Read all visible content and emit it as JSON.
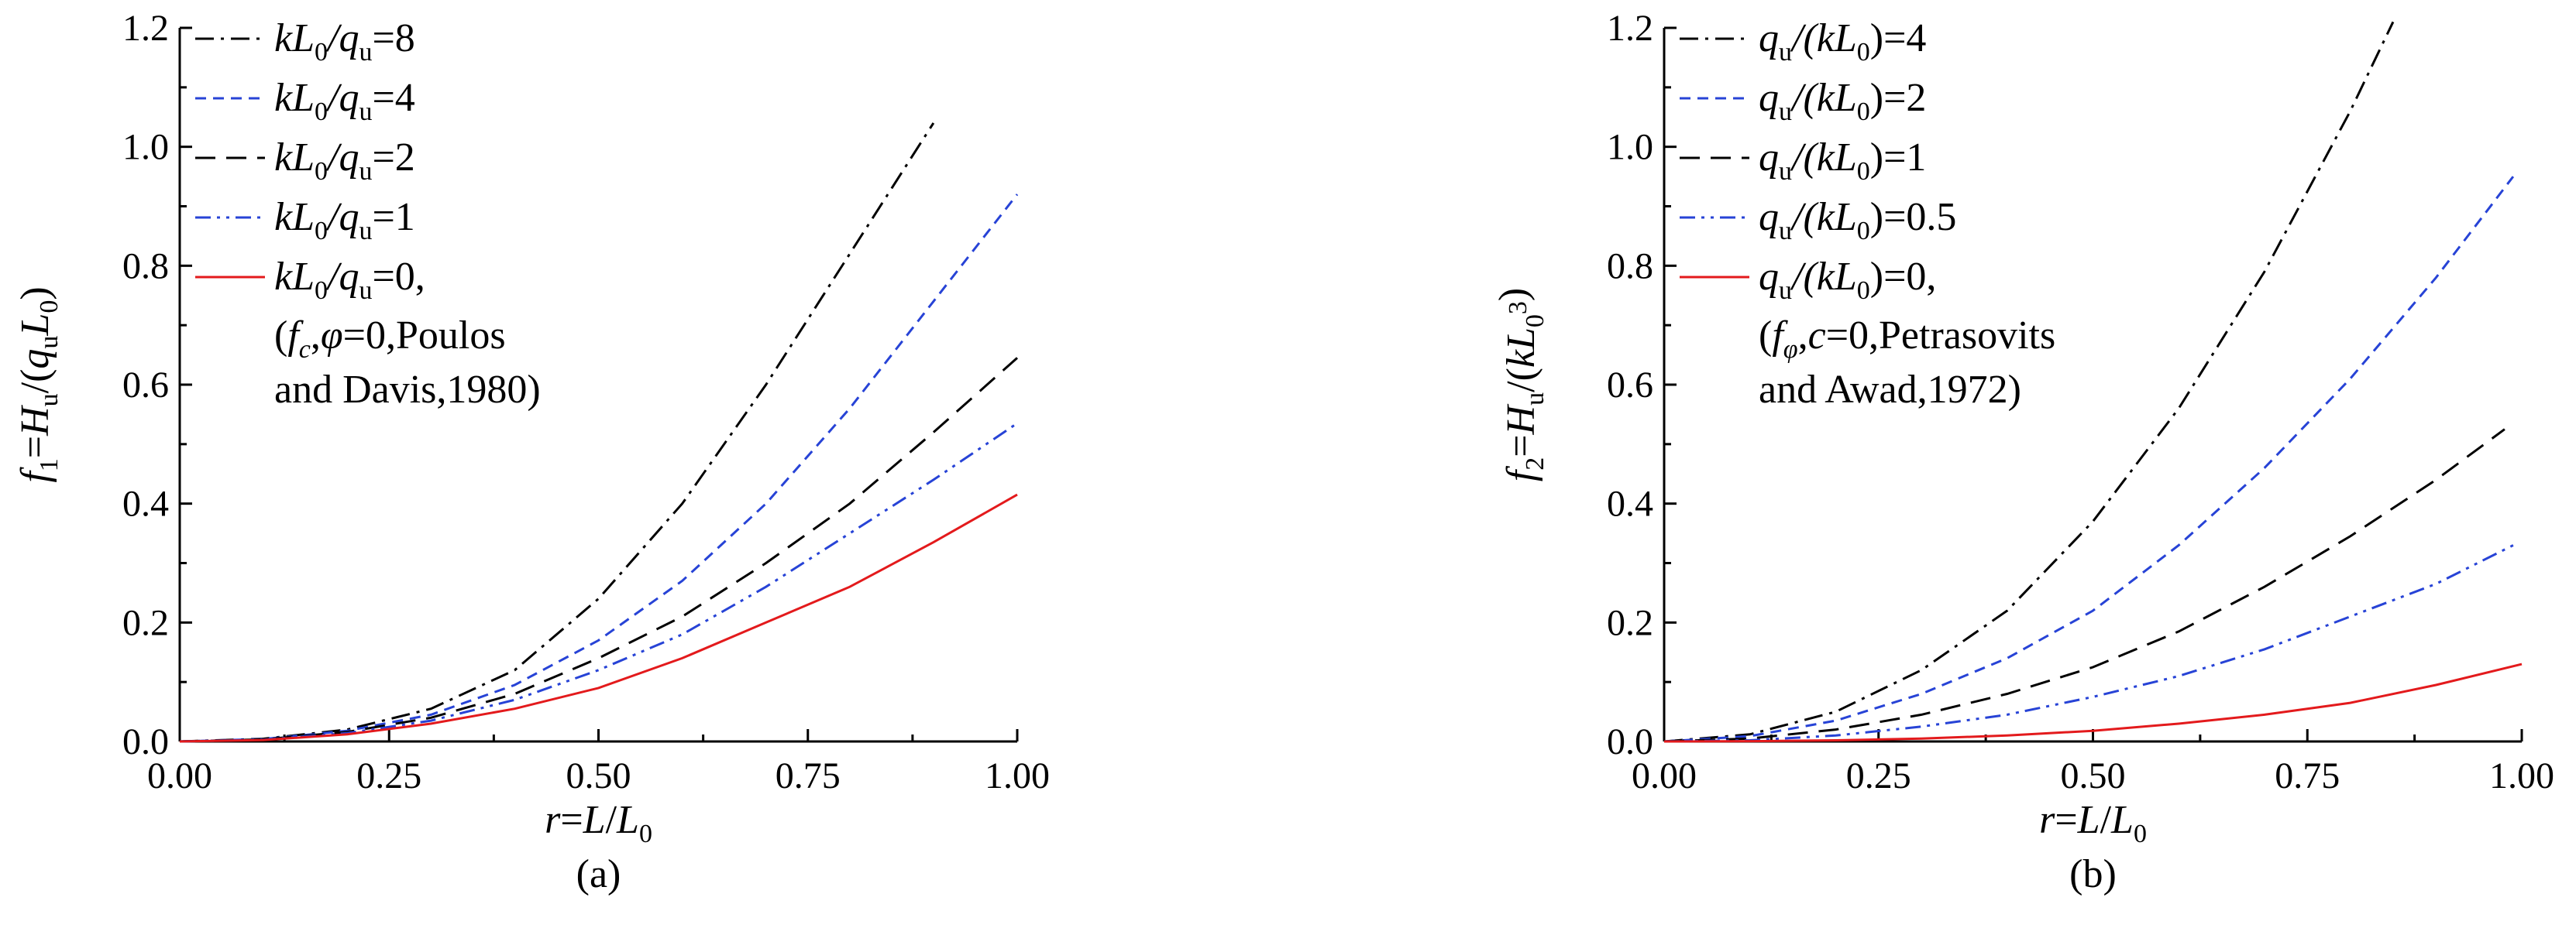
{
  "chart_data": [
    {
      "type": "line",
      "panel_label": "(a)",
      "xlabel": {
        "lhs": "r",
        "eq": "=",
        "L": "L",
        "slash": "/",
        "L0": "L",
        "sub0": "0"
      },
      "ylabel": {
        "f": "f",
        "sub1": "1",
        "eqH": "=",
        "H": "H",
        "subu": "u",
        "rest": "/(",
        "q": "q",
        "subu2": "u",
        "L": "L",
        "sub0": "0",
        "close": ")"
      },
      "xlim": [
        0,
        1
      ],
      "ylim": [
        0,
        1.2
      ],
      "xticks": [
        "0.00",
        "0.25",
        "0.50",
        "0.75",
        "1.00"
      ],
      "yticks": [
        "0.0",
        "0.2",
        "0.4",
        "0.6",
        "0.8",
        "1.0",
        "1.2"
      ],
      "legend": {
        "position": "top-left",
        "entries": [
          {
            "pre": "kL",
            "sub": "0",
            "mid": "/q",
            "sub2": "u",
            "post": "=8"
          },
          {
            "pre": "kL",
            "sub": "0",
            "mid": "/q",
            "sub2": "u",
            "post": "=4"
          },
          {
            "pre": "kL",
            "sub": "0",
            "mid": "/q",
            "sub2": "u",
            "post": "=2"
          },
          {
            "pre": "kL",
            "sub": "0",
            "mid": "/q",
            "sub2": "u",
            "post": "=1"
          },
          {
            "pre": "kL",
            "sub": "0",
            "mid": "/q",
            "sub2": "u",
            "post": "=0,"
          }
        ],
        "note_line1": {
          "open": "(",
          "f": "f",
          "sub": "c",
          "comma": ",",
          "phi": "φ",
          "rest": "=0,Poulos"
        },
        "note_line2": "and Davis,1980)"
      },
      "series": [
        {
          "color": "#000000",
          "dash": "dashdot",
          "x": [
            0.0,
            0.1,
            0.2,
            0.3,
            0.4,
            0.5,
            0.6,
            0.7,
            0.8,
            0.9
          ],
          "y": [
            0.0,
            0.0045,
            0.02,
            0.055,
            0.12,
            0.24,
            0.4,
            0.6,
            0.82,
            1.04
          ]
        },
        {
          "color": "#2743d6",
          "dash": "dash",
          "x": [
            0.0,
            0.1,
            0.2,
            0.3,
            0.4,
            0.5,
            0.6,
            0.7,
            0.8,
            0.9,
            1.0
          ],
          "y": [
            0.0,
            0.004,
            0.018,
            0.045,
            0.095,
            0.17,
            0.27,
            0.4,
            0.56,
            0.74,
            0.92
          ]
        },
        {
          "color": "#000000",
          "dash": "longdash",
          "x": [
            0.0,
            0.1,
            0.2,
            0.3,
            0.4,
            0.5,
            0.6,
            0.7,
            0.8,
            0.9,
            1.0
          ],
          "y": [
            0.0,
            0.0035,
            0.016,
            0.04,
            0.08,
            0.14,
            0.21,
            0.3,
            0.4,
            0.52,
            0.645
          ]
        },
        {
          "color": "#2743d6",
          "dash": "dashdotdot",
          "x": [
            0.0,
            0.1,
            0.2,
            0.3,
            0.4,
            0.5,
            0.6,
            0.7,
            0.8,
            0.9,
            1.0
          ],
          "y": [
            0.0,
            0.003,
            0.014,
            0.035,
            0.07,
            0.12,
            0.18,
            0.26,
            0.35,
            0.44,
            0.535
          ]
        },
        {
          "color": "#e31a1c",
          "dash": "solid",
          "x": [
            0.0,
            0.1,
            0.2,
            0.3,
            0.4,
            0.5,
            0.6,
            0.7,
            0.8,
            0.9,
            1.0
          ],
          "y": [
            0.0,
            0.0025,
            0.012,
            0.03,
            0.055,
            0.09,
            0.14,
            0.2,
            0.26,
            0.335,
            0.415
          ]
        }
      ]
    },
    {
      "type": "line",
      "panel_label": "(b)",
      "xlabel": {
        "lhs": "r",
        "eq": "=",
        "L": "L",
        "slash": "/",
        "L0": "L",
        "sub0": "0"
      },
      "ylabel": {
        "f": "f",
        "sub1": "2",
        "eqH": "=",
        "H": "H",
        "subu": "u",
        "rest": "/(",
        "k": "k",
        "L": "L",
        "sub0": "0",
        "sup": "3",
        "close": ")"
      },
      "xlim": [
        0,
        1
      ],
      "ylim": [
        0,
        1.2
      ],
      "xticks": [
        "0.00",
        "0.25",
        "0.50",
        "0.75",
        "1.00"
      ],
      "yticks": [
        "0.0",
        "0.2",
        "0.4",
        "0.6",
        "0.8",
        "1.0",
        "1.2"
      ],
      "legend": {
        "position": "top-left",
        "entries": [
          {
            "pre": "q",
            "sub": "u",
            "mid": "/(kL",
            "sub2": "0",
            "post": ")=4"
          },
          {
            "pre": "q",
            "sub": "u",
            "mid": "/(kL",
            "sub2": "0",
            "post": ")=2"
          },
          {
            "pre": "q",
            "sub": "u",
            "mid": "/(kL",
            "sub2": "0",
            "post": ")=1"
          },
          {
            "pre": "q",
            "sub": "u",
            "mid": "/(kL",
            "sub2": "0",
            "post": ")=0.5"
          },
          {
            "pre": "q",
            "sub": "u",
            "mid": "/(kL",
            "sub2": "0",
            "post": ")=0,"
          }
        ],
        "note_line1": {
          "open": "(",
          "f": "f",
          "sub": "φ",
          "comma": ",",
          "phi": "c",
          "rest": "=0,Petrasovits"
        },
        "note_line2": "and Awad,1972)"
      },
      "series": [
        {
          "color": "#000000",
          "dash": "dashdot",
          "x": [
            0.0,
            0.1,
            0.2,
            0.3,
            0.4,
            0.5,
            0.6,
            0.7,
            0.8,
            0.85
          ],
          "y": [
            0.0,
            0.012,
            0.05,
            0.12,
            0.22,
            0.37,
            0.56,
            0.79,
            1.06,
            1.21
          ]
        },
        {
          "color": "#2743d6",
          "dash": "dash",
          "x": [
            0.0,
            0.1,
            0.2,
            0.3,
            0.4,
            0.5,
            0.6,
            0.7,
            0.8,
            0.9,
            0.99
          ],
          "y": [
            0.0,
            0.009,
            0.035,
            0.08,
            0.14,
            0.22,
            0.33,
            0.46,
            0.61,
            0.78,
            0.95
          ]
        },
        {
          "color": "#000000",
          "dash": "longdash",
          "x": [
            0.0,
            0.1,
            0.2,
            0.3,
            0.4,
            0.5,
            0.6,
            0.7,
            0.8,
            0.9,
            0.98
          ],
          "y": [
            0.0,
            0.005,
            0.02,
            0.045,
            0.08,
            0.125,
            0.185,
            0.26,
            0.345,
            0.44,
            0.525
          ]
        },
        {
          "color": "#2743d6",
          "dash": "dashdotdot",
          "x": [
            0.0,
            0.1,
            0.2,
            0.3,
            0.4,
            0.5,
            0.6,
            0.7,
            0.8,
            0.9,
            0.99
          ],
          "y": [
            0.0,
            0.002,
            0.01,
            0.025,
            0.045,
            0.075,
            0.11,
            0.155,
            0.21,
            0.265,
            0.33
          ]
        },
        {
          "color": "#e31a1c",
          "dash": "solid",
          "x": [
            0.0,
            0.1,
            0.2,
            0.3,
            0.4,
            0.5,
            0.6,
            0.7,
            0.8,
            0.9,
            1.0
          ],
          "y": [
            0.0,
            0.0005,
            0.002,
            0.005,
            0.01,
            0.018,
            0.03,
            0.045,
            0.065,
            0.095,
            0.13
          ]
        }
      ]
    }
  ]
}
